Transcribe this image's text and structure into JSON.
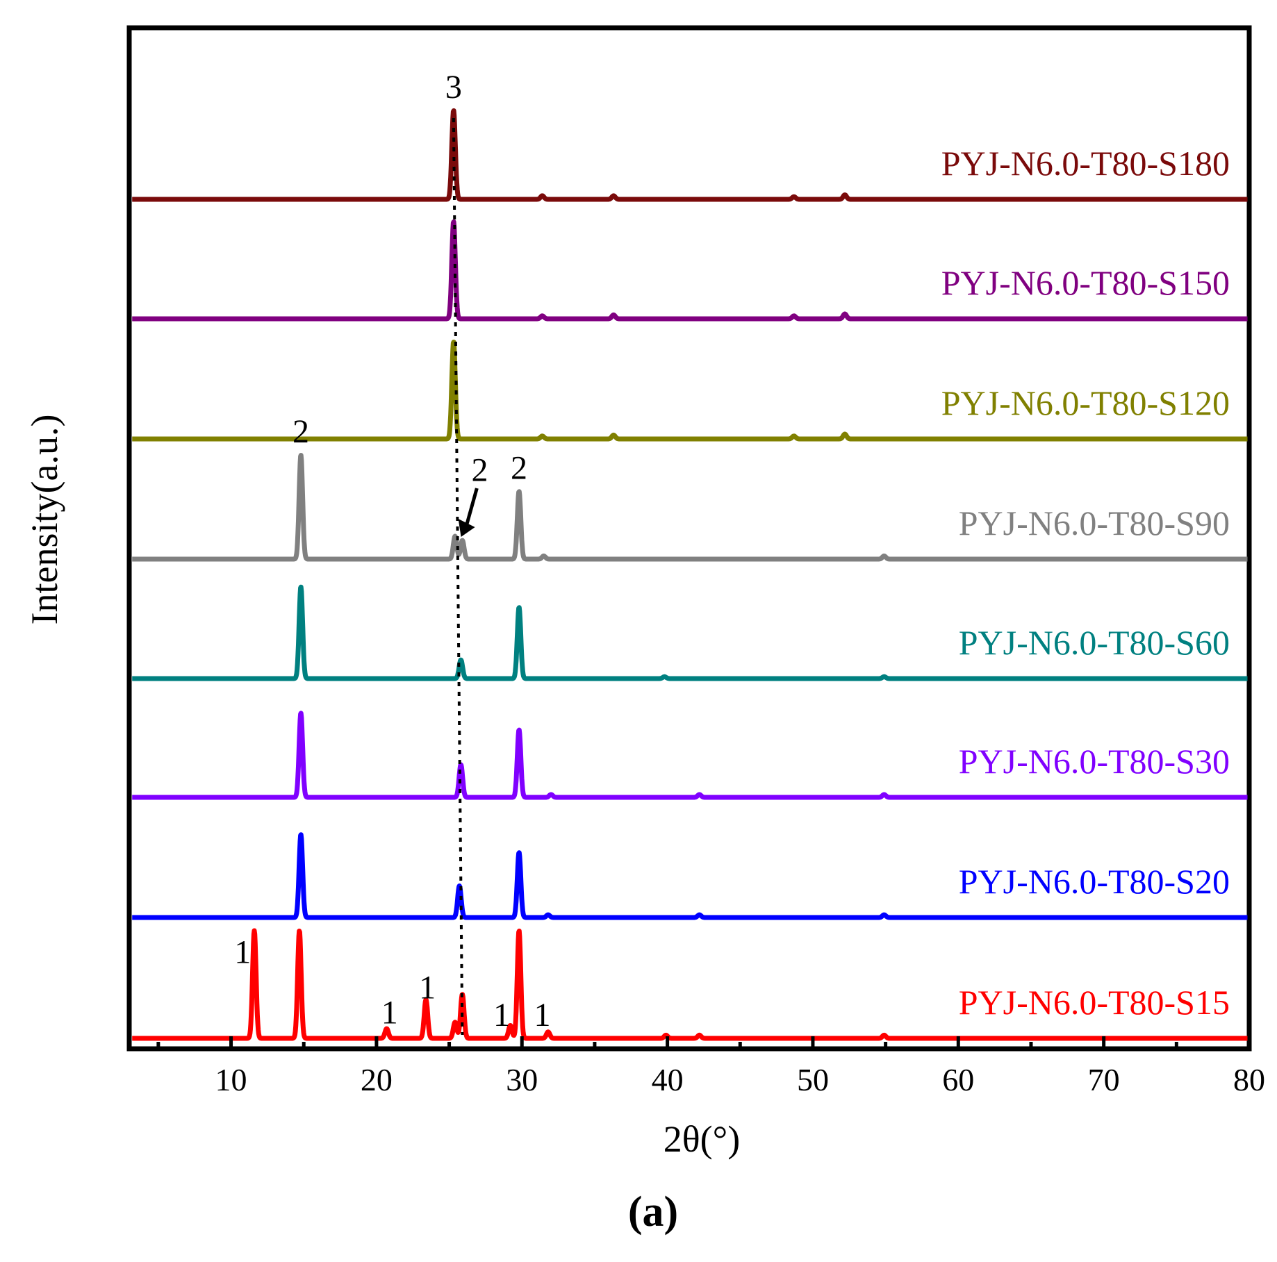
{
  "chart_data": {
    "type": "line",
    "title": "",
    "xlabel": "2θ(°)",
    "ylabel": "Intensity(a.u.)",
    "panel_label": "(a)",
    "xlim": [
      3,
      80
    ],
    "xticks": [
      10,
      20,
      30,
      40,
      50,
      60,
      70,
      80
    ],
    "grid": false,
    "legend": "right-inline",
    "series": [
      {
        "name": "PYJ-N6.0-T80-S180",
        "color": "#7a0a0a",
        "peaks": [
          [
            25.3,
            1.0
          ],
          [
            31.4,
            0.04
          ],
          [
            36.3,
            0.04
          ],
          [
            48.7,
            0.03
          ],
          [
            52.2,
            0.05
          ]
        ]
      },
      {
        "name": "PYJ-N6.0-T80-S150",
        "color": "#800080",
        "peaks": [
          [
            25.3,
            1.0
          ],
          [
            31.4,
            0.03
          ],
          [
            36.3,
            0.04
          ],
          [
            48.7,
            0.03
          ],
          [
            52.2,
            0.05
          ]
        ]
      },
      {
        "name": "PYJ-N6.0-T80-S120",
        "color": "#808000",
        "peaks": [
          [
            25.3,
            1.0
          ],
          [
            31.4,
            0.03
          ],
          [
            36.3,
            0.04
          ],
          [
            48.7,
            0.03
          ],
          [
            52.2,
            0.05
          ]
        ]
      },
      {
        "name": "PYJ-N6.0-T80-S90",
        "color": "#808080",
        "peaks": [
          [
            14.8,
            1.0
          ],
          [
            25.4,
            0.22
          ],
          [
            25.9,
            0.18
          ],
          [
            29.8,
            0.65
          ],
          [
            31.5,
            0.03
          ],
          [
            54.9,
            0.03
          ]
        ]
      },
      {
        "name": "PYJ-N6.0-T80-S60",
        "color": "#008080",
        "peaks": [
          [
            14.8,
            0.98
          ],
          [
            25.8,
            0.2
          ],
          [
            29.8,
            0.76
          ],
          [
            39.8,
            0.02
          ],
          [
            54.9,
            0.02
          ]
        ]
      },
      {
        "name": "PYJ-N6.0-T80-S30",
        "color": "#8000ff",
        "peaks": [
          [
            14.8,
            0.9
          ],
          [
            25.8,
            0.35
          ],
          [
            29.8,
            0.72
          ],
          [
            32.0,
            0.03
          ],
          [
            42.2,
            0.03
          ],
          [
            54.9,
            0.03
          ]
        ]
      },
      {
        "name": "PYJ-N6.0-T80-S20",
        "color": "#0000ff",
        "peaks": [
          [
            14.8,
            0.92
          ],
          [
            25.7,
            0.35
          ],
          [
            29.8,
            0.72
          ],
          [
            31.8,
            0.03
          ],
          [
            42.2,
            0.03
          ],
          [
            54.9,
            0.03
          ]
        ]
      },
      {
        "name": "PYJ-N6.0-T80-S15",
        "color": "#ff0000",
        "peaks": [
          [
            11.6,
            1.0
          ],
          [
            14.7,
            1.0
          ],
          [
            20.7,
            0.09
          ],
          [
            23.4,
            0.36
          ],
          [
            25.4,
            0.15
          ],
          [
            25.9,
            0.41
          ],
          [
            29.2,
            0.12
          ],
          [
            29.8,
            1.0
          ],
          [
            31.8,
            0.06
          ],
          [
            39.9,
            0.03
          ],
          [
            42.2,
            0.03
          ],
          [
            54.9,
            0.03
          ]
        ]
      }
    ],
    "peak_annotations": [
      {
        "text": "3",
        "series": "PYJ-N6.0-T80-S180",
        "x": 25.3
      },
      {
        "text": "2",
        "series": "PYJ-N6.0-T80-S90",
        "x": 14.8
      },
      {
        "text": "2",
        "series": "PYJ-N6.0-T80-S90",
        "x": 27.1
      },
      {
        "text": "2",
        "series": "PYJ-N6.0-T80-S90",
        "x": 29.8
      },
      {
        "text": "1",
        "series": "PYJ-N6.0-T80-S15",
        "x": 10.8
      },
      {
        "text": "1",
        "series": "PYJ-N6.0-T80-S15",
        "x": 20.9
      },
      {
        "text": "1",
        "series": "PYJ-N6.0-T80-S15",
        "x": 23.5
      },
      {
        "text": "1",
        "series": "PYJ-N6.0-T80-S15",
        "x": 28.6
      },
      {
        "text": "1",
        "series": "PYJ-N6.0-T80-S15",
        "x": 31.4
      }
    ],
    "guide_line": {
      "style": "dotted",
      "from_x": 25.3,
      "to_x": 25.9
    }
  }
}
